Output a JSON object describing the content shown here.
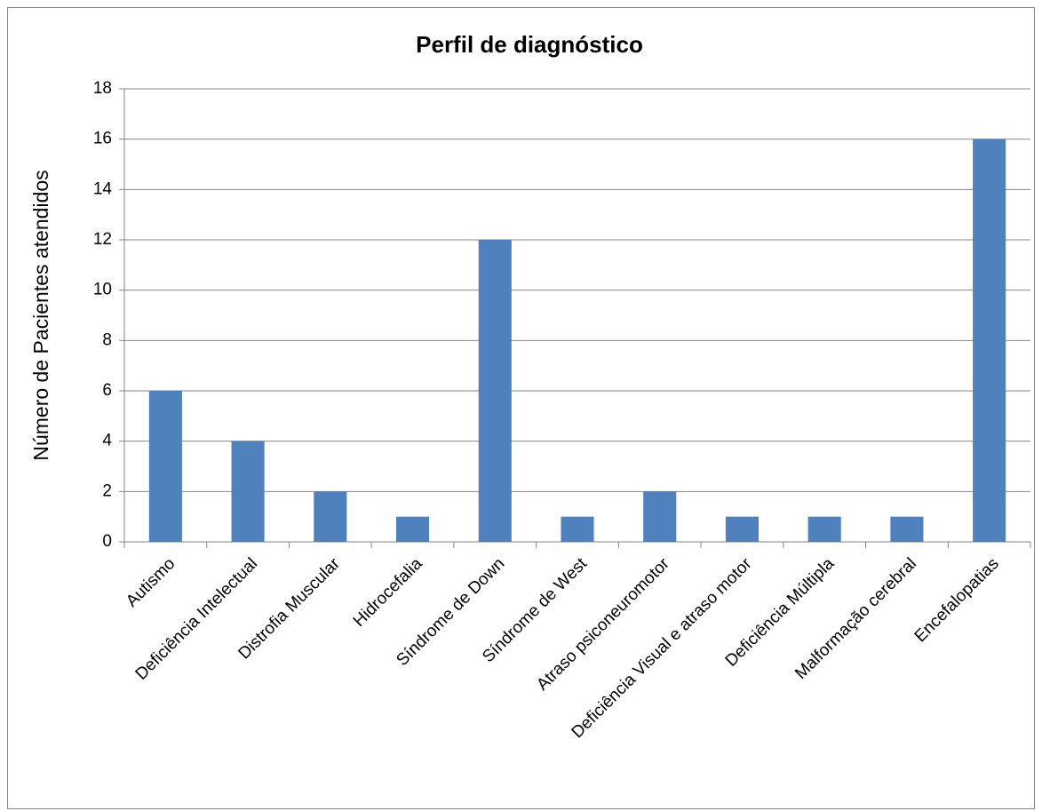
{
  "chart_data": {
    "type": "bar",
    "title": "Perfil de diagnóstico",
    "y_label": "Número de Pacientes atendidos",
    "categories": [
      "Autismo",
      "Deficiência Intelectual",
      "Distrofia Muscular",
      "Hidrocefalia",
      "Síndrome de Down",
      "Síndrome de West",
      "Atraso psiconeuromotor",
      "Deficiência Visual e atraso motor",
      "Deficiência Múltipla",
      "Malformação cerebral",
      "Encefalopatias"
    ],
    "values": [
      6,
      4,
      2,
      1,
      12,
      1,
      2,
      1,
      1,
      1,
      16
    ],
    "color": "#4f81bd",
    "ylim": [
      0,
      18
    ],
    "yticks": [
      0,
      2,
      4,
      6,
      8,
      10,
      12,
      14,
      16,
      18
    ],
    "grid": true
  }
}
